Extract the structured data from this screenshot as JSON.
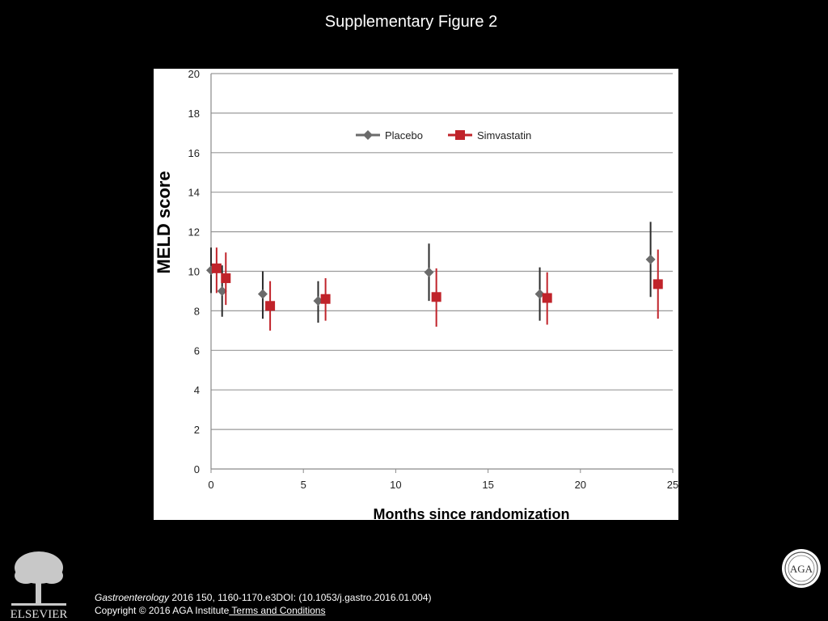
{
  "page": {
    "title": "Supplementary Figure 2"
  },
  "chart_data": {
    "type": "scatter",
    "subtype": "error-bar",
    "title": "",
    "xlabel": "Months since randomization",
    "ylabel": "MELD score",
    "xlim": [
      0,
      25
    ],
    "ylim": [
      0,
      20
    ],
    "x_ticks": [
      0,
      5,
      10,
      15,
      20,
      25
    ],
    "y_ticks": [
      0,
      2,
      4,
      6,
      8,
      10,
      12,
      14,
      16,
      18,
      20
    ],
    "grid": "horizontal",
    "legend": "top-center",
    "series": [
      {
        "name": "Placebo",
        "color": "#6b6b6b",
        "marker": "diamond",
        "points": [
          {
            "x": 0.0,
            "y": 10.05,
            "low": 8.9,
            "high": 11.2
          },
          {
            "x": 0.6,
            "y": 9.0,
            "low": 7.7,
            "high": 10.3
          },
          {
            "x": 2.8,
            "y": 8.85,
            "low": 7.6,
            "high": 10.0
          },
          {
            "x": 5.8,
            "y": 8.5,
            "low": 7.4,
            "high": 9.5
          },
          {
            "x": 11.8,
            "y": 9.95,
            "low": 8.5,
            "high": 11.4
          },
          {
            "x": 17.8,
            "y": 8.85,
            "low": 7.5,
            "high": 10.2
          },
          {
            "x": 23.8,
            "y": 10.6,
            "low": 8.7,
            "high": 12.5
          }
        ]
      },
      {
        "name": "Simvastatin",
        "color": "#c0232a",
        "marker": "square",
        "points": [
          {
            "x": 0.3,
            "y": 10.15,
            "low": 8.9,
            "high": 11.2
          },
          {
            "x": 0.8,
            "y": 9.65,
            "low": 8.3,
            "high": 10.95
          },
          {
            "x": 3.2,
            "y": 8.25,
            "low": 7.0,
            "high": 9.5
          },
          {
            "x": 6.2,
            "y": 8.6,
            "low": 7.5,
            "high": 9.65
          },
          {
            "x": 12.2,
            "y": 8.7,
            "low": 7.2,
            "high": 10.15
          },
          {
            "x": 18.2,
            "y": 8.65,
            "low": 7.3,
            "high": 9.95
          },
          {
            "x": 24.2,
            "y": 9.35,
            "low": 7.6,
            "high": 11.1
          }
        ]
      }
    ]
  },
  "citation": {
    "journal": "Gastroenterology",
    "details": " 2016 150, 1160-1170.e3DOI: (10.1053/j.gastro.2016.01.004)",
    "copyright": "Copyright © 2016 AGA Institute",
    "terms_link": " Terms and Conditions"
  },
  "logos": {
    "publisher_text": "ELSEVIER",
    "society_text": "AGA"
  },
  "colors": {
    "background": "#000000",
    "panel": "#ffffff",
    "gridline": "#9a9a9a",
    "placebo": "#6b6b6b",
    "simvastatin": "#c0232a"
  }
}
